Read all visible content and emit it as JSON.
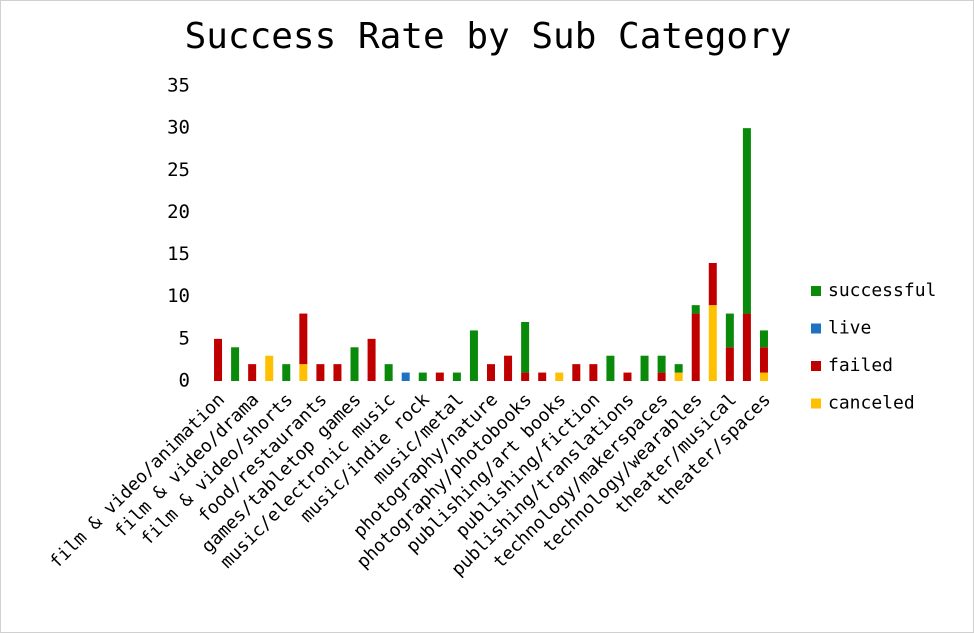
{
  "chart_data": {
    "type": "stacked_bar",
    "title": "Success Rate by Sub Category",
    "categories": [
      "film & video/animation",
      null,
      "film & video/drama",
      null,
      "film & video/shorts",
      null,
      "food/restaurants",
      null,
      "games/tabletop games",
      null,
      "music/electronic music",
      null,
      "music/indie rock",
      null,
      "music/metal",
      null,
      "photography/nature",
      null,
      "photography/photobooks",
      null,
      "publishing/art books",
      null,
      "publishing/fiction",
      null,
      "publishing/translations",
      null,
      "technology/makerspaces",
      null,
      "technology/wearables",
      null,
      "theater/musical",
      null,
      "theater/spaces"
    ],
    "series": [
      {
        "name": "canceled",
        "color": "#ffc000",
        "values": [
          0,
          0,
          0,
          3,
          0,
          2,
          0,
          0,
          0,
          0,
          0,
          0,
          0,
          0,
          0,
          0,
          0,
          0,
          0,
          0,
          1,
          0,
          0,
          0,
          0,
          0,
          0,
          1,
          0,
          9,
          0,
          0,
          1
        ]
      },
      {
        "name": "failed",
        "color": "#c00000",
        "values": [
          5,
          0,
          2,
          0,
          0,
          6,
          2,
          2,
          0,
          5,
          0,
          0,
          0,
          1,
          0,
          0,
          2,
          3,
          1,
          1,
          0,
          2,
          2,
          0,
          1,
          0,
          1,
          0,
          8,
          5,
          4,
          8,
          3
        ]
      },
      {
        "name": "live",
        "color": "#1f72c0",
        "values": [
          0,
          0,
          0,
          0,
          0,
          0,
          0,
          0,
          0,
          0,
          0,
          1,
          0,
          0,
          0,
          0,
          0,
          0,
          0,
          0,
          0,
          0,
          0,
          0,
          0,
          0,
          0,
          0,
          0,
          0,
          0,
          0,
          0
        ]
      },
      {
        "name": "successful",
        "color": "#0a8a0a",
        "values": [
          0,
          4,
          0,
          0,
          2,
          0,
          0,
          0,
          4,
          0,
          2,
          0,
          1,
          0,
          1,
          6,
          0,
          0,
          6,
          0,
          0,
          0,
          0,
          3,
          0,
          3,
          2,
          1,
          1,
          0,
          4,
          22,
          2
        ]
      }
    ],
    "ylim": [
      0,
      35
    ],
    "yticks": [
      0,
      5,
      10,
      15,
      20,
      25,
      30,
      35
    ],
    "grid": false,
    "legend": "right"
  }
}
